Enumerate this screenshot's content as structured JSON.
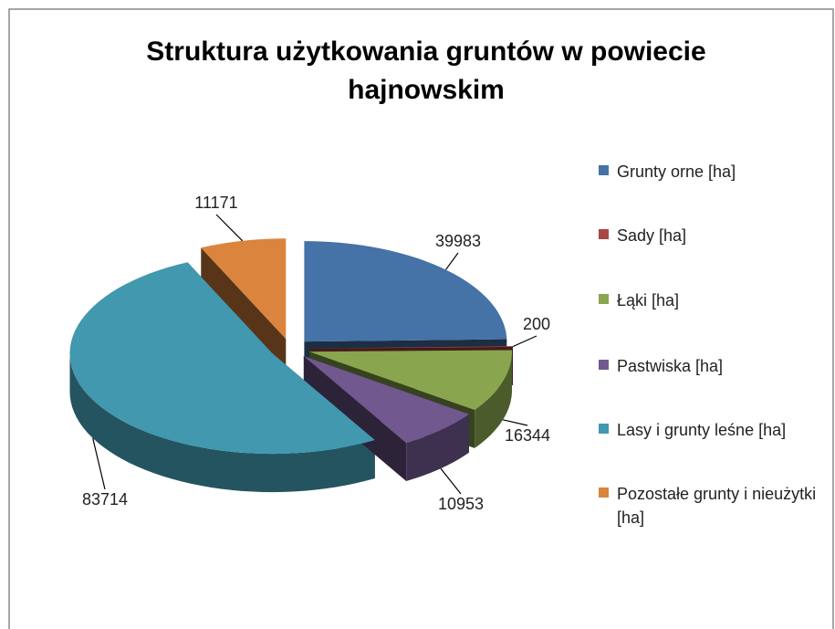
{
  "chart_data": {
    "type": "pie3d",
    "title": "Struktura użytkowania gruntów w powiecie hajnowskim",
    "categories": [
      "Grunty orne [ha]",
      "Sady [ha]",
      "Łąki [ha]",
      "Pastwiska [ha]",
      "Lasy i grunty leśne [ha]",
      "Pozostałe grunty i nieużytki [ha]"
    ],
    "values": [
      39983,
      200,
      16344,
      10953,
      83714,
      11171
    ],
    "colors": [
      "#4572a7",
      "#aa4643",
      "#89a54e",
      "#71588f",
      "#4198af",
      "#db843d"
    ],
    "legend": "right"
  }
}
